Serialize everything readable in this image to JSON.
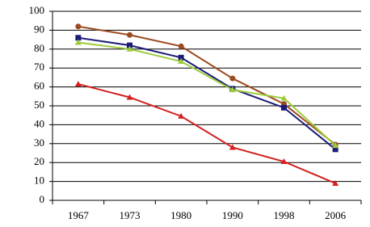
{
  "chart_data": {
    "type": "line",
    "categories": [
      "1967",
      "1973",
      "1980",
      "1990",
      "1998",
      "2006"
    ],
    "series": [
      {
        "color": "#9c4a22",
        "marker": "circle",
        "values": [
          92,
          87.5,
          81.5,
          64.5,
          51,
          29.5
        ]
      },
      {
        "color": "#1c1c78",
        "marker": "square",
        "values": [
          86,
          82,
          75.5,
          59,
          49,
          27
        ]
      },
      {
        "color": "#9ccc3c",
        "marker": "triangle",
        "values": [
          83.5,
          80,
          73.5,
          58.5,
          54,
          29
        ]
      },
      {
        "color": "#d42020",
        "marker": "triangle",
        "values": [
          61.5,
          54.5,
          44.5,
          28,
          20.5,
          9
        ]
      }
    ],
    "ylim": [
      0,
      100
    ],
    "yticks": [
      0,
      10,
      20,
      30,
      40,
      50,
      60,
      70,
      80,
      90,
      100
    ],
    "grid": true
  }
}
